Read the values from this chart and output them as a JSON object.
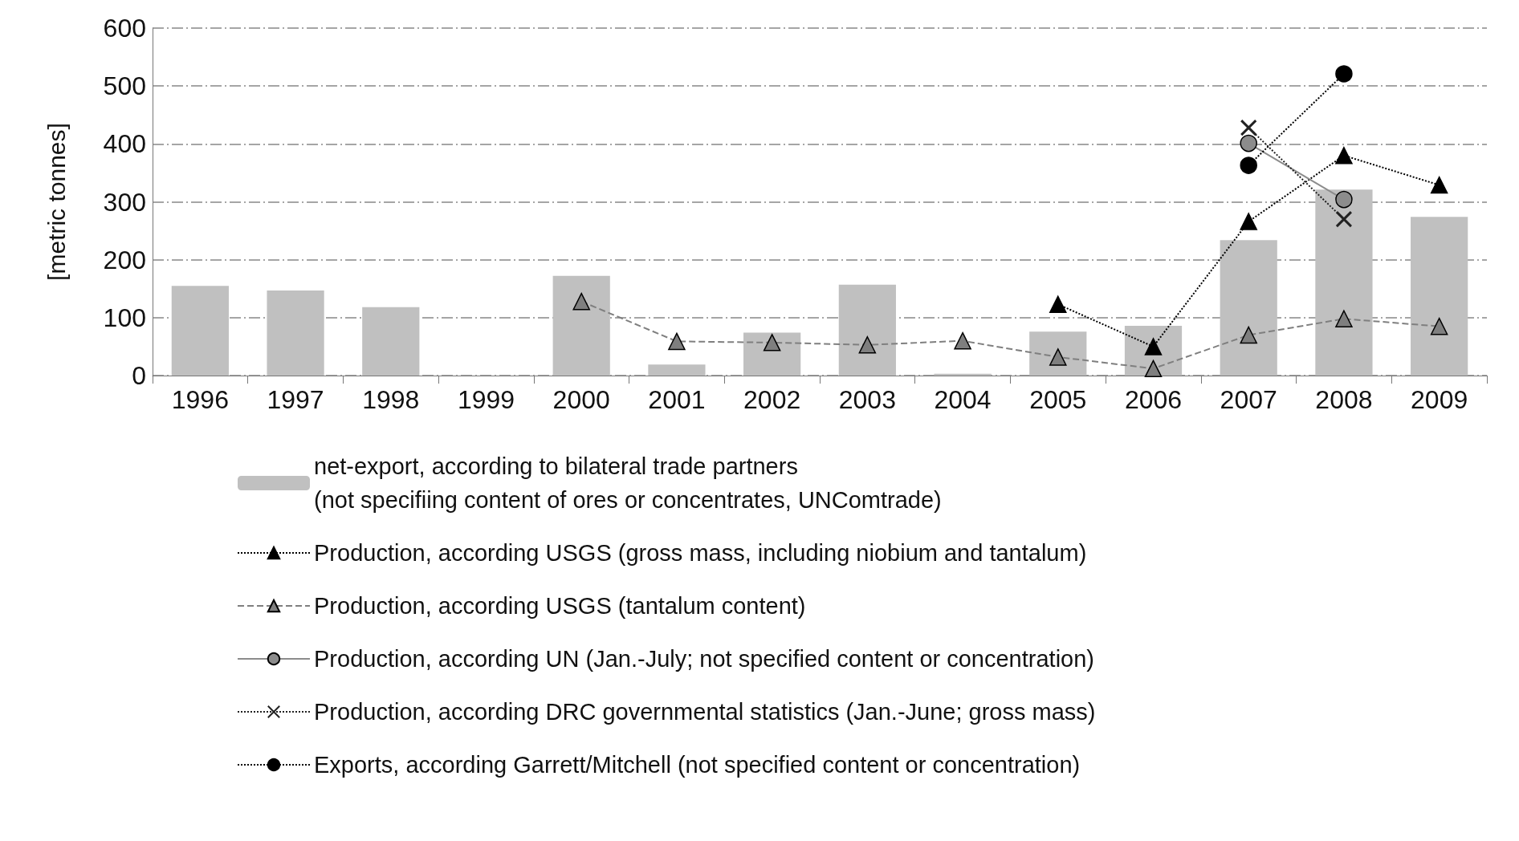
{
  "chart_data": {
    "type": "bar",
    "ylabel": "[metric tonnes]",
    "categories": [
      "1996",
      "1997",
      "1998",
      "1999",
      "2000",
      "2001",
      "2002",
      "2003",
      "2004",
      "2005",
      "2006",
      "2007",
      "2008",
      "2009"
    ],
    "ylim": [
      0,
      600
    ],
    "yticks": [
      0,
      100,
      200,
      300,
      400,
      500,
      600
    ],
    "grid": "y",
    "legend": "bottom",
    "series": [
      {
        "name": "net-export, according to bilateral trade partners\n(not specifiing content of ores or concentrates, UNComtrade)",
        "color": "#c0c0c0",
        "values": [
          155,
          147,
          118,
          null,
          172,
          19,
          74,
          157,
          3,
          76,
          86,
          234,
          321,
          274
        ]
      },
      {
        "name": "Production, according USGS (gross mass, including niobium and tantalum)",
        "type": "line",
        "color": "#000000",
        "marker": "triangle",
        "line_style": "dotted",
        "values": [
          null,
          null,
          null,
          null,
          null,
          null,
          null,
          null,
          null,
          123,
          50,
          266,
          380,
          329
        ]
      },
      {
        "name": "Production, according USGS (tantalum content)",
        "type": "line",
        "color": "#7f7f7f",
        "marker": "triangle",
        "line_style": "dashed",
        "values": [
          null,
          null,
          null,
          null,
          128,
          59,
          57,
          53,
          60,
          32,
          12,
          70,
          98,
          85
        ]
      },
      {
        "name": "Production, according UN (Jan.-July; not specified content or concentration)",
        "type": "line",
        "color": "#8c8c8c",
        "marker": "circle",
        "line_style": "solid",
        "values": [
          null,
          null,
          null,
          null,
          null,
          null,
          null,
          null,
          null,
          null,
          null,
          401,
          304,
          null
        ]
      },
      {
        "name": "Production, according DRC governmental statistics (Jan.-June; gross mass)",
        "type": "line",
        "color": "#222222",
        "marker": "cross",
        "line_style": "dotted",
        "values": [
          null,
          null,
          null,
          null,
          null,
          null,
          null,
          null,
          null,
          null,
          null,
          428,
          270,
          null
        ]
      },
      {
        "name": "Exports, according Garrett/Mitchell (not specified content or concentration)",
        "type": "line",
        "color": "#000000",
        "marker": "circle",
        "line_style": "dotted",
        "values": [
          null,
          null,
          null,
          null,
          null,
          null,
          null,
          null,
          null,
          null,
          null,
          363,
          521,
          null
        ]
      }
    ]
  }
}
